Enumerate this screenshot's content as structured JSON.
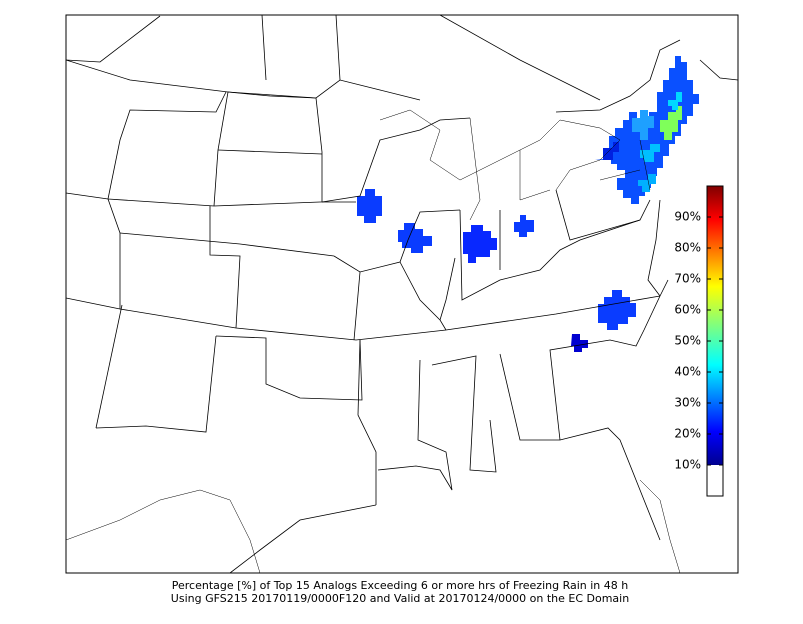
{
  "caption": {
    "line1": "Percentage [%] of Top 15 Analogs Exceeding 6 or more hrs of Freezing Rain in 48 h",
    "line2": "Using GFS215 20170119/0000F120 and Valid at 20170124/0000 on the EC Domain"
  },
  "colorbar": {
    "ticks": [
      "10%",
      "20%",
      "30%",
      "40%",
      "50%",
      "60%",
      "70%",
      "80%",
      "90%"
    ]
  }
}
